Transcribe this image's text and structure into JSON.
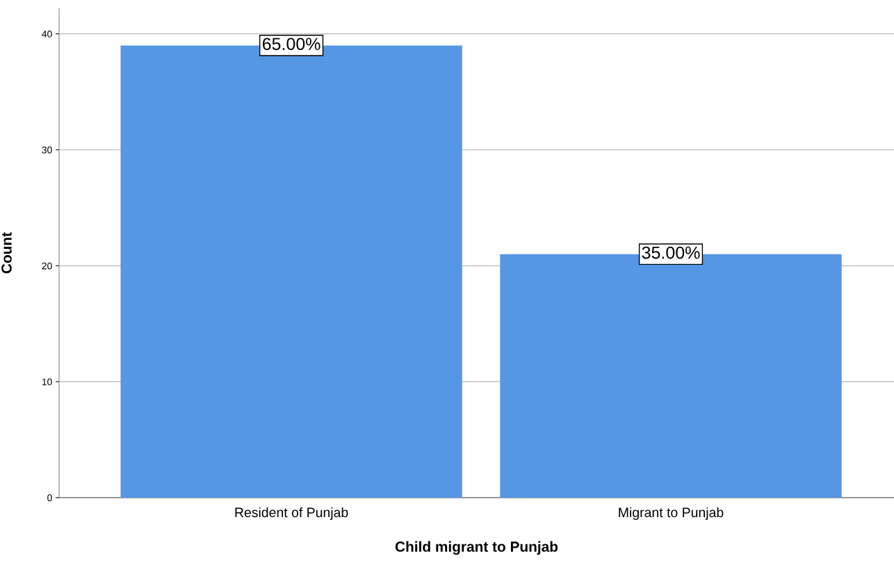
{
  "chart_data": {
    "type": "bar",
    "xlabel": "Child migrant to Punjab",
    "ylabel": "Count",
    "categories": [
      "Resident of Punjab",
      "Migrant to Punjab"
    ],
    "values": [
      39,
      21
    ],
    "annotations": [
      {
        "text": "65.00%",
        "x": "Resident of Punjab",
        "y": 39
      },
      {
        "text": "35.00%",
        "x": "Migrant to Punjab",
        "y": 21
      }
    ],
    "color": "#5596e5",
    "ylim": [
      0,
      42.2
    ],
    "yticks": [
      0,
      10,
      20,
      30,
      40
    ],
    "grid": "y"
  }
}
